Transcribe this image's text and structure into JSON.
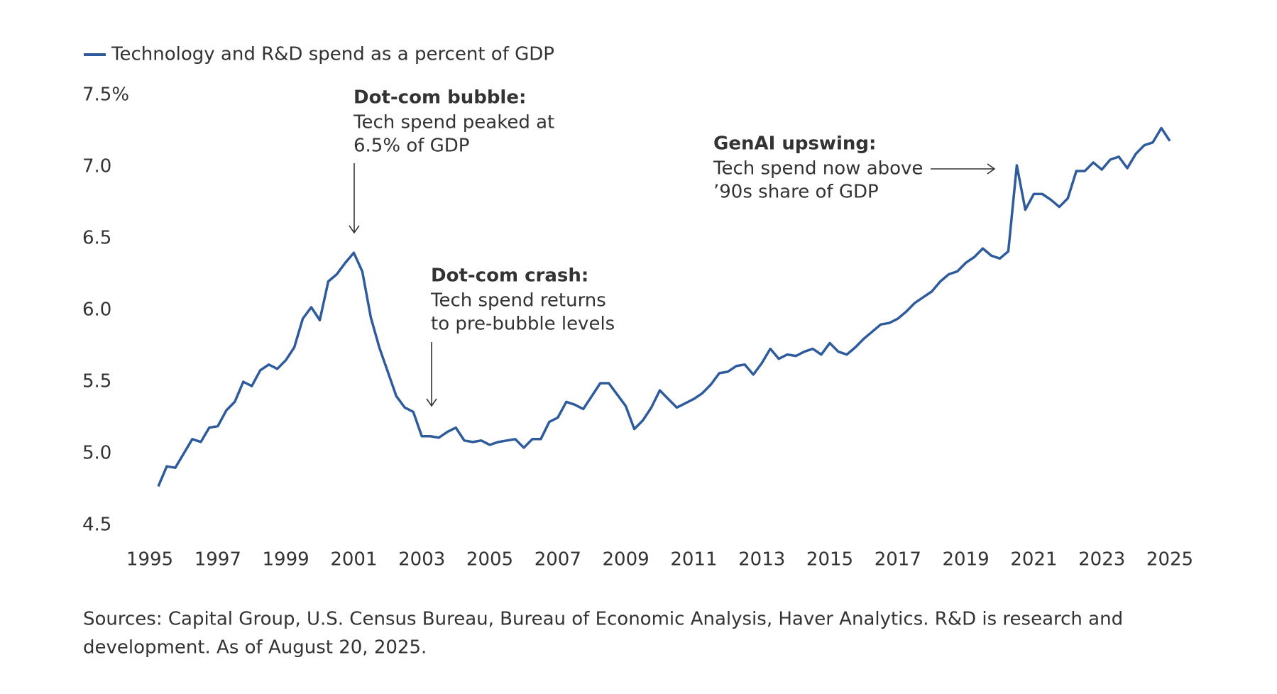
{
  "chart_data": {
    "type": "line",
    "series": [
      {
        "name": "Technology and R&D spend as a percent of GDP",
        "color": "#2d5b9b",
        "values": [
          4.77,
          4.91,
          4.9,
          5.0,
          5.1,
          5.08,
          5.18,
          5.19,
          5.3,
          5.36,
          5.5,
          5.47,
          5.58,
          5.62,
          5.59,
          5.65,
          5.74,
          5.94,
          6.02,
          5.93,
          6.2,
          6.25,
          6.33,
          6.4,
          6.27,
          5.95,
          5.74,
          5.57,
          5.4,
          5.32,
          5.29,
          5.12,
          5.12,
          5.11,
          5.15,
          5.18,
          5.09,
          5.08,
          5.09,
          5.06,
          5.08,
          5.09,
          5.1,
          5.04,
          5.1,
          5.1,
          5.22,
          5.25,
          5.36,
          5.34,
          5.31,
          5.4,
          5.49,
          5.49,
          5.41,
          5.33,
          5.17,
          5.23,
          5.32,
          5.44,
          5.38,
          5.32,
          5.35,
          5.38,
          5.42,
          5.48,
          5.56,
          5.57,
          5.61,
          5.62,
          5.55,
          5.63,
          5.73,
          5.66,
          5.69,
          5.68,
          5.71,
          5.73,
          5.69,
          5.77,
          5.71,
          5.69,
          5.74,
          5.8,
          5.85,
          5.9,
          5.91,
          5.94,
          5.99,
          6.05,
          6.09,
          6.13,
          6.2,
          6.25,
          6.27,
          6.33,
          6.37,
          6.43,
          6.38,
          6.36,
          6.41,
          7.01,
          6.7,
          6.81,
          6.81,
          6.77,
          6.72,
          6.78,
          6.97,
          6.97,
          7.03,
          6.98,
          7.05,
          7.07,
          6.99,
          7.09,
          7.15,
          7.17,
          7.27,
          7.18
        ]
      }
    ],
    "x": [
      1995.25,
      1995.5,
      1995.75,
      1996,
      1996.25,
      1996.5,
      1996.75,
      1997,
      1997.25,
      1997.5,
      1997.75,
      1998,
      1998.25,
      1998.5,
      1998.75,
      1999,
      1999.25,
      1999.5,
      1999.75,
      2000,
      2000.25,
      2000.5,
      2000.75,
      2001,
      2001.25,
      2001.5,
      2001.75,
      2002,
      2002.25,
      2002.5,
      2002.75,
      2003,
      2003.25,
      2003.5,
      2003.75,
      2004,
      2004.25,
      2004.5,
      2004.75,
      2005,
      2005.25,
      2005.5,
      2005.75,
      2006,
      2006.25,
      2006.5,
      2006.75,
      2007,
      2007.25,
      2007.5,
      2007.75,
      2008,
      2008.25,
      2008.5,
      2008.75,
      2009,
      2009.25,
      2009.5,
      2009.75,
      2010,
      2010.25,
      2010.5,
      2010.75,
      2011,
      2011.25,
      2011.5,
      2011.75,
      2012,
      2012.25,
      2012.5,
      2012.75,
      2013,
      2013.25,
      2013.5,
      2013.75,
      2014,
      2014.25,
      2014.5,
      2014.75,
      2015,
      2015.25,
      2015.5,
      2015.75,
      2016,
      2016.25,
      2016.5,
      2016.75,
      2017,
      2017.25,
      2017.5,
      2017.75,
      2018,
      2018.25,
      2018.5,
      2018.75,
      2019,
      2019.25,
      2019.5,
      2019.75,
      2020,
      2020.25,
      2020.5,
      2020.75,
      2021,
      2021.25,
      2021.5,
      2021.75,
      2022,
      2022.25,
      2022.5,
      2022.75,
      2023,
      2023.25,
      2023.5,
      2023.75,
      2024,
      2024.25,
      2024.5,
      2024.75,
      2025
    ],
    "xlim": [
      1995,
      2025
    ],
    "xticks": [
      1995,
      1997,
      1999,
      2001,
      2003,
      2005,
      2007,
      2009,
      2011,
      2013,
      2015,
      2017,
      2019,
      2021,
      2023,
      2025
    ],
    "ylim": [
      4.5,
      7.5
    ],
    "yticks": [
      4.5,
      {
        "value": 5,
        "label": "5.0"
      },
      5.5,
      {
        "value": 6,
        "label": "6.0"
      },
      6.5,
      {
        "value": 7,
        "label": "7.0"
      },
      {
        "value": 7.5,
        "label": "7.5%"
      }
    ],
    "grid": false,
    "legend": "top-left",
    "annotations": [
      {
        "title": "Dot-com bubble:",
        "lines": [
          "Tech spend peaked at",
          "6.5% of GDP"
        ]
      },
      {
        "title": "Dot-com crash:",
        "lines": [
          "Tech spend returns",
          "to pre-bubble levels"
        ]
      },
      {
        "title": "GenAI upswing:",
        "lines": [
          "Tech spend now above",
          "’90s share of GDP"
        ]
      }
    ],
    "source": [
      "Sources: Capital Group, U.S. Census Bureau, Bureau of Economic Analysis, Haver Analytics. R&D is research and",
      "development. As of August 20, 2025."
    ]
  }
}
